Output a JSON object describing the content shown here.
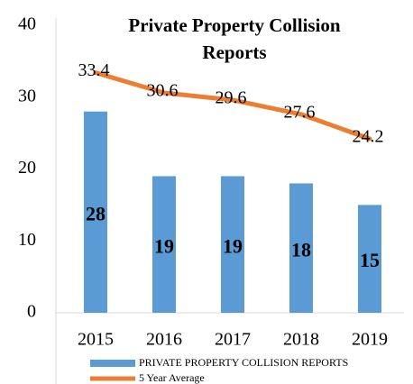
{
  "chart_data": {
    "type": "bar",
    "title": "Private Property Collision Reports",
    "categories": [
      "2015",
      "2016",
      "2017",
      "2018",
      "2019"
    ],
    "series": [
      {
        "name": "PRIVATE PROPERTY COLLISION REPORTS",
        "type": "bar",
        "color": "#5b9bd5",
        "values": [
          28,
          19,
          19,
          18,
          15
        ]
      },
      {
        "name": "5 Year Average",
        "type": "line",
        "color": "#ed7d31",
        "values": [
          33.4,
          30.6,
          29.6,
          27.6,
          24.2
        ]
      }
    ],
    "ylim": [
      0,
      40
    ],
    "yticks": [
      0,
      10,
      20,
      30,
      40
    ],
    "grid": false,
    "legend": "bottom"
  }
}
